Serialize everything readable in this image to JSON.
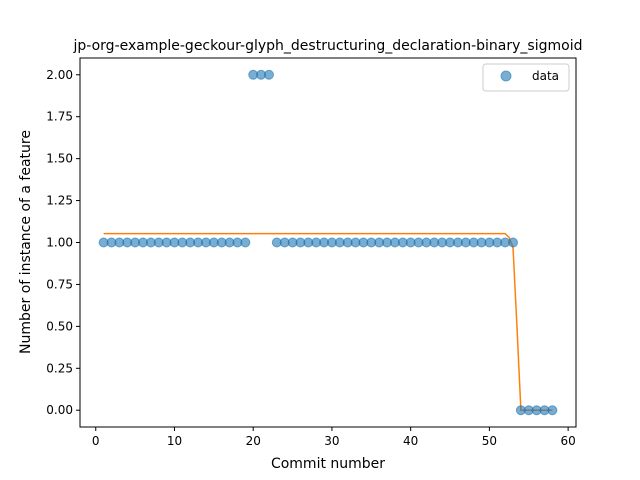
{
  "chart_data": {
    "type": "scatter",
    "title": "jp-org-example-geckour-glyph_destructuring_declaration-binary_sigmoid",
    "xlabel": "Commit number",
    "ylabel": "Number of instance of a feature",
    "xlim": [
      -2,
      61
    ],
    "ylim": [
      -0.1,
      2.1
    ],
    "xticks": [
      0,
      10,
      20,
      30,
      40,
      50,
      60
    ],
    "yticks": [
      0.0,
      0.25,
      0.5,
      0.75,
      1.0,
      1.25,
      1.5,
      1.75,
      2.0
    ],
    "ytick_labels": [
      "0.00",
      "0.25",
      "0.50",
      "0.75",
      "1.00",
      "1.25",
      "1.50",
      "1.75",
      "2.00"
    ],
    "grid": false,
    "legend_position": "upper right",
    "series": [
      {
        "name": "data",
        "kind": "scatter",
        "color": "#1f77b4",
        "x": [
          1,
          2,
          3,
          4,
          5,
          6,
          7,
          8,
          9,
          10,
          11,
          12,
          13,
          14,
          15,
          16,
          17,
          18,
          19,
          20,
          21,
          22,
          23,
          24,
          25,
          26,
          27,
          28,
          29,
          30,
          31,
          32,
          33,
          34,
          35,
          36,
          37,
          38,
          39,
          40,
          41,
          42,
          43,
          44,
          45,
          46,
          47,
          48,
          49,
          50,
          51,
          52,
          53,
          54,
          55,
          56,
          57,
          58
        ],
        "y": [
          1,
          1,
          1,
          1,
          1,
          1,
          1,
          1,
          1,
          1,
          1,
          1,
          1,
          1,
          1,
          1,
          1,
          1,
          1,
          2,
          2,
          2,
          1,
          1,
          1,
          1,
          1,
          1,
          1,
          1,
          1,
          1,
          1,
          1,
          1,
          1,
          1,
          1,
          1,
          1,
          1,
          1,
          1,
          1,
          1,
          1,
          1,
          1,
          1,
          1,
          1,
          1,
          1,
          0,
          0,
          0,
          0,
          0
        ]
      },
      {
        "kind": "line",
        "color": "#ff7f0e",
        "x": [
          1,
          52,
          52.5,
          53,
          53.5,
          54,
          58
        ],
        "y": [
          1.053,
          1.053,
          1.03,
          0.97,
          0.5,
          0.0,
          0.0
        ]
      }
    ]
  }
}
